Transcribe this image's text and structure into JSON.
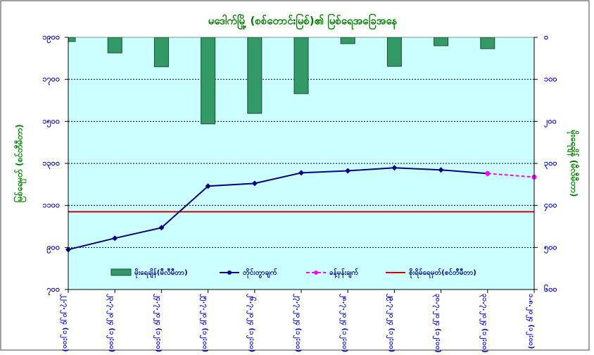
{
  "chart_data": {
    "type": "combo",
    "title": "မဒေါက်မြို့ (စစ်တောင်းမြစ်)၏ မြစ်ရေအခြေအနေ",
    "y_label": "မြစ်ရေမှတ် (စင်တီမီတာ)",
    "y2_label": "မိုးရေချိန် (မီလီမီတာ)",
    "categories": [
      "၂၂.၇.၂၀၂၄ (၁၂:၀၀)",
      "၂၃.၇.၂၀၂၄ (၁၂:၀၀)",
      "၂၄.၇.၂၀၂၄ (၁၂:၀၀)",
      "၂၅.၇.၂၀၂၄ (၁၂:၀၀)",
      "၂၆.၇.၂၀၂၄ (၁၂:၀၀)",
      "၂၇.၇.၂၀၂၄ (၁၂:၀၀)",
      "၂၈.၇.၂၀၂၄ (၁၂:၀၀)",
      "၂၉.၇.၂၀၂၄ (၁၂:၀၀)",
      "၃၀.၇.၂၀၂၄ (၁၂:၀၀)",
      "၃၁.၇.၂၀၂၄ (၁၂:၀၀)",
      "၁.၈.၂၀၂၄ (၁၂:၀၀)"
    ],
    "series": [
      {
        "name": "မိုးရေချိန်(မီလီမီတာ)",
        "type": "bar",
        "axis": "y2",
        "color": "#339966",
        "values": [
          10,
          37,
          70,
          206,
          181,
          134,
          15,
          69,
          20,
          27,
          null
        ]
      },
      {
        "name": "တိုင်းတွာချက်",
        "type": "line",
        "color": "#000080",
        "marker": "diamond",
        "values": [
          890,
          944,
          994,
          1192,
          1205,
          1255,
          1265,
          1279,
          1269,
          1252,
          null
        ]
      },
      {
        "name": "ခန့်မှန်းချက်",
        "type": "line",
        "color": "#ff00ff",
        "marker": "circle",
        "dashed": true,
        "values": [
          null,
          null,
          null,
          null,
          null,
          null,
          null,
          null,
          null,
          1252,
          1235
        ]
      }
    ],
    "reference_line": {
      "name": "စိုးရိမ်ရေမှတ်(စင်တီမီတာ)",
      "color": "#cc0000",
      "value": 1070
    },
    "ylim": [
      700,
      1900
    ],
    "yticks": [
      {
        "value": 700,
        "label": "၇၀၀"
      },
      {
        "value": 900,
        "label": "၉၀၀"
      },
      {
        "value": 1100,
        "label": "၁၁၀၀"
      },
      {
        "value": 1300,
        "label": "၁၃၀၀"
      },
      {
        "value": 1500,
        "label": "၁၅၀၀"
      },
      {
        "value": 1700,
        "label": "၁၇၀၀"
      },
      {
        "value": 1900,
        "label": "၁၉၀၀"
      }
    ],
    "y2lim": [
      0,
      600
    ],
    "y2_inverted": true,
    "y2ticks": [
      {
        "value": 0,
        "label": "၀"
      },
      {
        "value": 100,
        "label": "၁၀၀"
      },
      {
        "value": 200,
        "label": "၂၀၀"
      },
      {
        "value": 300,
        "label": "၃၀၀"
      },
      {
        "value": 400,
        "label": "၄၀၀"
      },
      {
        "value": 500,
        "label": "၅၀၀"
      },
      {
        "value": 600,
        "label": "၆၀၀"
      }
    ],
    "grid": true,
    "legend": "bottom"
  }
}
